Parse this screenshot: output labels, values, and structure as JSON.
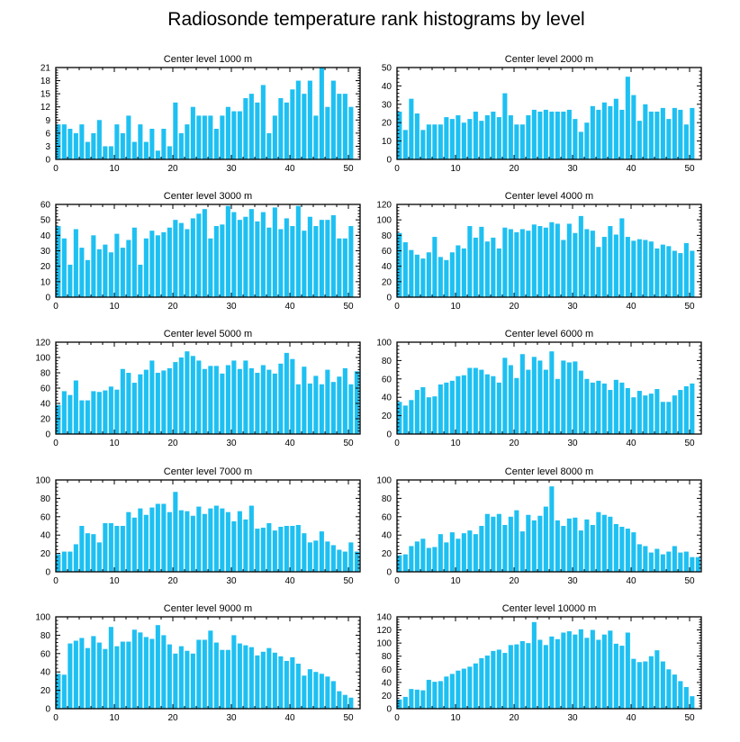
{
  "title": "Radiosonde temperature rank histograms by level",
  "bar_color": "#1ec0f2",
  "chart_data": [
    {
      "type": "bar",
      "title": "Center level 1000 m",
      "xlabel": "",
      "ylabel": "",
      "xlim": [
        0,
        52
      ],
      "ylim": [
        0,
        21
      ],
      "xticks": [
        0,
        10,
        20,
        30,
        40,
        50
      ],
      "yticks": [
        0,
        3,
        6,
        9,
        12,
        15,
        18,
        21
      ],
      "values": [
        8,
        8,
        7,
        6,
        8,
        4,
        6,
        9,
        3,
        3,
        8,
        6,
        10,
        4,
        8,
        4,
        7,
        2,
        7,
        3,
        13,
        6,
        8,
        12,
        10,
        10,
        10,
        7,
        10,
        12,
        11,
        11,
        14,
        15,
        13,
        17,
        6,
        10,
        14,
        13,
        16,
        18,
        15,
        18,
        10,
        21,
        12,
        18,
        15,
        15,
        12
      ]
    },
    {
      "type": "bar",
      "title": "Center level 2000 m",
      "xlabel": "",
      "ylabel": "",
      "xlim": [
        0,
        52
      ],
      "ylim": [
        0,
        50
      ],
      "xticks": [
        0,
        10,
        20,
        30,
        40,
        50
      ],
      "yticks": [
        0,
        10,
        20,
        30,
        40,
        50
      ],
      "values": [
        26,
        16,
        33,
        25,
        16,
        19,
        19,
        19,
        23,
        22,
        24,
        20,
        22,
        26,
        21,
        24,
        26,
        23,
        36,
        24,
        19,
        19,
        24,
        27,
        26,
        27,
        26,
        26,
        26,
        27,
        22,
        15,
        20,
        29,
        27,
        31,
        29,
        33,
        27,
        45,
        35,
        21,
        30,
        26,
        26,
        28,
        22,
        28,
        27,
        19,
        28
      ]
    },
    {
      "type": "bar",
      "title": "Center level 3000 m",
      "xlabel": "",
      "ylabel": "",
      "xlim": [
        0,
        52
      ],
      "ylim": [
        0,
        60
      ],
      "xticks": [
        0,
        10,
        20,
        30,
        40,
        50
      ],
      "yticks": [
        0,
        10,
        20,
        30,
        40,
        50,
        60
      ],
      "values": [
        46,
        38,
        21,
        44,
        32,
        24,
        40,
        31,
        34,
        29,
        41,
        32,
        37,
        45,
        21,
        38,
        43,
        40,
        42,
        45,
        50,
        48,
        44,
        51,
        54,
        57,
        38,
        46,
        47,
        59,
        55,
        50,
        52,
        57,
        49,
        55,
        45,
        58,
        44,
        51,
        46,
        59,
        43,
        52,
        46,
        50,
        50,
        53,
        38,
        38,
        46
      ]
    },
    {
      "type": "bar",
      "title": "Center level 4000 m",
      "xlabel": "",
      "ylabel": "",
      "xlim": [
        0,
        52
      ],
      "ylim": [
        0,
        120
      ],
      "xticks": [
        0,
        10,
        20,
        30,
        40,
        50
      ],
      "yticks": [
        0,
        20,
        40,
        60,
        80,
        100,
        120
      ],
      "values": [
        83,
        71,
        61,
        55,
        50,
        58,
        78,
        52,
        48,
        58,
        67,
        63,
        92,
        77,
        91,
        72,
        77,
        63,
        90,
        88,
        84,
        88,
        86,
        94,
        92,
        90,
        97,
        95,
        74,
        95,
        83,
        105,
        88,
        86,
        65,
        78,
        92,
        81,
        102,
        78,
        73,
        75,
        74,
        72,
        63,
        68,
        66,
        60,
        57,
        70,
        60
      ]
    },
    {
      "type": "bar",
      "title": "Center level 5000 m",
      "xlabel": "",
      "ylabel": "",
      "xlim": [
        0,
        52
      ],
      "ylim": [
        0,
        120
      ],
      "xticks": [
        0,
        10,
        20,
        30,
        40,
        50
      ],
      "yticks": [
        0,
        20,
        40,
        60,
        80,
        100,
        120
      ],
      "values": [
        38,
        56,
        51,
        70,
        44,
        44,
        56,
        55,
        57,
        62,
        58,
        85,
        80,
        67,
        78,
        84,
        96,
        80,
        83,
        86,
        94,
        100,
        108,
        102,
        96,
        85,
        89,
        89,
        79,
        90,
        96,
        85,
        96,
        86,
        80,
        90,
        84,
        79,
        92,
        106,
        98,
        65,
        88,
        66,
        76,
        65,
        84,
        68,
        75,
        86,
        65,
        82
      ]
    },
    {
      "type": "bar",
      "title": "Center level 6000 m",
      "xlabel": "",
      "ylabel": "",
      "xlim": [
        0,
        52
      ],
      "ylim": [
        0,
        100
      ],
      "xticks": [
        0,
        10,
        20,
        30,
        40,
        50
      ],
      "yticks": [
        0,
        20,
        40,
        60,
        80,
        100
      ],
      "values": [
        35,
        31,
        37,
        48,
        51,
        40,
        41,
        54,
        56,
        58,
        63,
        64,
        72,
        72,
        70,
        65,
        63,
        56,
        83,
        75,
        61,
        87,
        70,
        84,
        80,
        70,
        90,
        60,
        80,
        78,
        79,
        69,
        60,
        56,
        58,
        55,
        48,
        59,
        56,
        50,
        40,
        47,
        42,
        44,
        49,
        35,
        35,
        42,
        48,
        52,
        55
      ]
    },
    {
      "type": "bar",
      "title": "Center level 7000 m",
      "xlabel": "",
      "ylabel": "",
      "xlim": [
        0,
        52
      ],
      "ylim": [
        0,
        100
      ],
      "xticks": [
        0,
        10,
        20,
        30,
        40,
        50
      ],
      "yticks": [
        0,
        20,
        40,
        60,
        80,
        100
      ],
      "values": [
        19,
        22,
        22,
        30,
        50,
        42,
        41,
        32,
        53,
        53,
        50,
        50,
        65,
        59,
        69,
        62,
        70,
        74,
        74,
        65,
        87,
        67,
        66,
        61,
        71,
        63,
        69,
        72,
        69,
        65,
        55,
        66,
        57,
        72,
        47,
        48,
        53,
        45,
        49,
        50,
        50,
        51,
        42,
        32,
        34,
        44,
        33,
        29,
        24,
        22,
        32,
        22
      ]
    },
    {
      "type": "bar",
      "title": "Center level 8000 m",
      "xlabel": "",
      "ylabel": "",
      "xlim": [
        0,
        52
      ],
      "ylim": [
        0,
        100
      ],
      "xticks": [
        0,
        10,
        20,
        30,
        40,
        50
      ],
      "yticks": [
        0,
        20,
        40,
        60,
        80,
        100
      ],
      "values": [
        18,
        19,
        28,
        33,
        36,
        26,
        27,
        41,
        32,
        43,
        36,
        42,
        45,
        41,
        50,
        63,
        60,
        63,
        51,
        60,
        67,
        44,
        62,
        56,
        61,
        71,
        93,
        56,
        50,
        58,
        59,
        45,
        57,
        51,
        65,
        62,
        60,
        52,
        49,
        47,
        43,
        30,
        28,
        21,
        25,
        19,
        22,
        28,
        21,
        22,
        16,
        16
      ]
    },
    {
      "type": "bar",
      "title": "Center level 9000 m",
      "xlabel": "",
      "ylabel": "",
      "xlim": [
        0,
        52
      ],
      "ylim": [
        0,
        100
      ],
      "xticks": [
        0,
        10,
        20,
        30,
        40,
        50
      ],
      "yticks": [
        0,
        20,
        40,
        60,
        80,
        100
      ],
      "values": [
        38,
        37,
        71,
        74,
        77,
        66,
        79,
        72,
        65,
        89,
        68,
        73,
        73,
        86,
        83,
        78,
        76,
        91,
        80,
        70,
        60,
        68,
        63,
        60,
        75,
        75,
        85,
        72,
        64,
        64,
        80,
        71,
        69,
        67,
        58,
        62,
        66,
        61,
        57,
        52,
        56,
        49,
        36,
        43,
        40,
        38,
        35,
        30,
        19,
        15,
        12
      ]
    },
    {
      "type": "bar",
      "title": "Center level 10000 m",
      "xlabel": "",
      "ylabel": "",
      "xlim": [
        0,
        52
      ],
      "ylim": [
        0,
        140
      ],
      "xticks": [
        0,
        10,
        20,
        30,
        40,
        50
      ],
      "yticks": [
        0,
        20,
        40,
        60,
        80,
        100,
        120,
        140
      ],
      "values": [
        14,
        18,
        30,
        29,
        28,
        44,
        41,
        42,
        49,
        53,
        58,
        61,
        64,
        69,
        77,
        81,
        88,
        90,
        85,
        97,
        98,
        103,
        100,
        132,
        105,
        97,
        110,
        106,
        116,
        118,
        113,
        121,
        108,
        120,
        105,
        113,
        119,
        99,
        96,
        116,
        76,
        71,
        72,
        80,
        89,
        72,
        60,
        52,
        42,
        33,
        19
      ]
    }
  ]
}
